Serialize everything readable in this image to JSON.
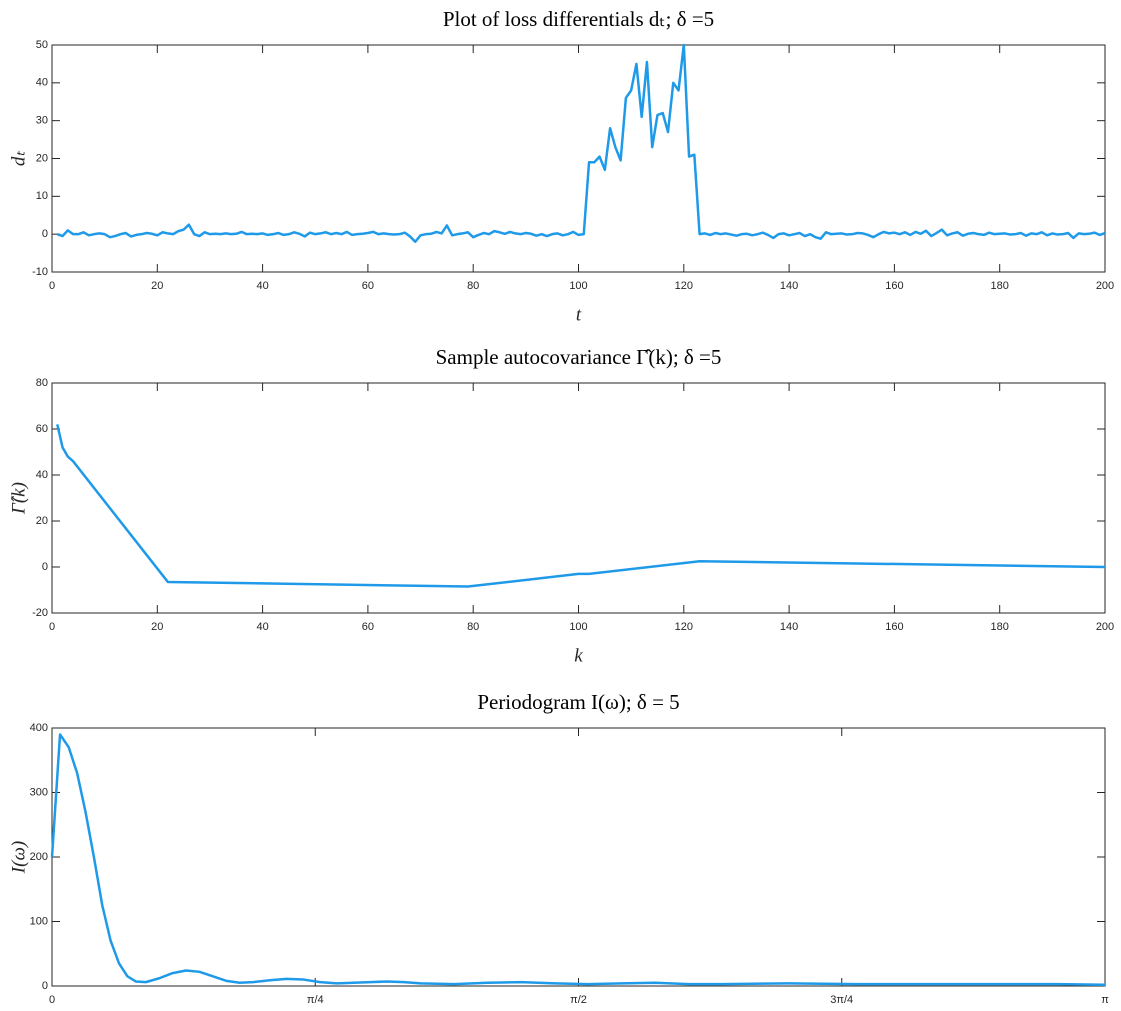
{
  "chart_data": [
    {
      "type": "line",
      "title": "Plot of loss differentials dₜ; δ =5",
      "xlabel": "t",
      "ylabel": "dₜ",
      "color": "#1f9ae8",
      "xlim": [
        0,
        200
      ],
      "xticks": [
        0,
        20,
        40,
        60,
        80,
        100,
        120,
        140,
        160,
        180,
        200
      ],
      "ylim": [
        -10,
        50
      ],
      "yticks": [
        -10,
        0,
        10,
        20,
        30,
        40,
        50
      ],
      "x": [
        1,
        2,
        3,
        4,
        5,
        6,
        7,
        8,
        9,
        10,
        11,
        12,
        13,
        14,
        15,
        16,
        17,
        18,
        19,
        20,
        21,
        22,
        23,
        24,
        25,
        26,
        27,
        28,
        29,
        30,
        31,
        32,
        33,
        34,
        35,
        36,
        37,
        38,
        39,
        40,
        41,
        42,
        43,
        44,
        45,
        46,
        47,
        48,
        49,
        50,
        51,
        52,
        53,
        54,
        55,
        56,
        57,
        58,
        59,
        60,
        61,
        62,
        63,
        64,
        65,
        66,
        67,
        68,
        69,
        70,
        71,
        72,
        73,
        74,
        75,
        76,
        77,
        78,
        79,
        80,
        81,
        82,
        83,
        84,
        85,
        86,
        87,
        88,
        89,
        90,
        91,
        92,
        93,
        94,
        95,
        96,
        97,
        98,
        99,
        100,
        101,
        102,
        103,
        104,
        105,
        106,
        107,
        108,
        109,
        110,
        111,
        112,
        113,
        114,
        115,
        116,
        117,
        118,
        119,
        120,
        121,
        122,
        123,
        124,
        125,
        126,
        127,
        128,
        129,
        130,
        131,
        132,
        133,
        134,
        135,
        136,
        137,
        138,
        139,
        140,
        141,
        142,
        143,
        144,
        145,
        146,
        147,
        148,
        149,
        150,
        151,
        152,
        153,
        154,
        155,
        156,
        157,
        158,
        159,
        160,
        161,
        162,
        163,
        164,
        165,
        166,
        167,
        168,
        169,
        170,
        171,
        172,
        173,
        174,
        175,
        176,
        177,
        178,
        179,
        180,
        181,
        182,
        183,
        184,
        185,
        186,
        187,
        188,
        189,
        190,
        191,
        192,
        193,
        194,
        195,
        196,
        197,
        198,
        199,
        200
      ],
      "values": [
        0,
        -0.5,
        1,
        0,
        0,
        0.5,
        -0.3,
        0,
        0.2,
        0,
        -0.8,
        -0.5,
        0,
        0.3,
        -0.6,
        -0.2,
        0,
        0.3,
        0.1,
        -0.3,
        0.5,
        0.2,
        0,
        0.8,
        1.2,
        2.5,
        0,
        -0.5,
        0.5,
        0,
        0.1,
        0,
        0.2,
        0,
        0.1,
        0.6,
        0,
        0.1,
        0,
        0.2,
        -0.2,
        0,
        0.3,
        -0.2,
        0,
        0.5,
        0.1,
        -0.6,
        0.4,
        0,
        0.2,
        0.5,
        0,
        0.3,
        0,
        0.6,
        -0.2,
        0,
        0.1,
        0.3,
        0.6,
        0,
        0.2,
        0,
        -0.1,
        0,
        0.4,
        -0.6,
        -2,
        -0.3,
        0,
        0.1,
        0.6,
        0.2,
        2.3,
        -0.3,
        0,
        0.2,
        0.5,
        -0.8,
        -0.2,
        0.3,
        0,
        0.8,
        0.5,
        0.1,
        0.6,
        0.2,
        0,
        0.3,
        0.1,
        -0.4,
        0,
        -0.5,
        0,
        0.2,
        -0.3,
        0,
        0.6,
        -0.2,
        0,
        19,
        19,
        20.5,
        17,
        28,
        23,
        19.5,
        36,
        38,
        45,
        31,
        45.5,
        23,
        31.5,
        32,
        27,
        40,
        38,
        50,
        20.5,
        21,
        0,
        0.2,
        -0.2,
        0.3,
        0,
        0.2,
        -0.1,
        -0.4,
        0,
        0.1,
        -0.3,
        0,
        0.4,
        -0.2,
        -1,
        0,
        0.2,
        -0.3,
        0,
        0.3,
        -0.5,
        0,
        -0.8,
        -1.2,
        0.5,
        0,
        0.1,
        0.2,
        -0.1,
        0,
        0.3,
        0.2,
        -0.2,
        -0.8,
        0,
        0.6,
        0.2,
        0.4,
        0,
        0.5,
        -0.2,
        0.6,
        0.1,
        0.9,
        -0.5,
        0.3,
        1.2,
        -0.3,
        0.2,
        0.5,
        -0.4,
        0.1,
        0.3,
        0,
        -0.2,
        0.4,
        0,
        0.1,
        0.2,
        -0.1,
        0,
        0.3,
        -0.4,
        0.2,
        0,
        0.5,
        -0.3,
        0.2,
        -0.1,
        0,
        0.3,
        -1,
        0.2,
        0,
        0.1,
        0.4,
        -0.2,
        0.3
      ]
    },
    {
      "type": "line",
      "title": "Sample autocovariance Γ̂(k); δ =5",
      "xlabel": "k",
      "ylabel": "Γ̂(k)",
      "color": "#1f9ae8",
      "xlim": [
        0,
        200
      ],
      "xticks": [
        0,
        20,
        40,
        60,
        80,
        100,
        120,
        140,
        160,
        180,
        200
      ],
      "ylim": [
        -20,
        80
      ],
      "yticks": [
        -20,
        0,
        20,
        40,
        60,
        80
      ],
      "x": [
        1,
        2,
        3,
        4,
        22,
        79,
        100,
        102,
        123,
        200
      ],
      "values": [
        62,
        52,
        48,
        46,
        -6.5,
        -8.5,
        -3,
        -3,
        2.5,
        0
      ]
    },
    {
      "type": "line",
      "title": "Periodogram I(ω); δ = 5",
      "xlabel": "ω",
      "ylabel": "I(ω)",
      "color": "#1f9ae8",
      "xlim": [
        0,
        3.14159
      ],
      "xticks": [
        0,
        {
          "value": 0.7854,
          "label": "π/4"
        },
        {
          "value": 1.5708,
          "label": "π/2"
        },
        {
          "value": 2.3562,
          "label": "3π/4"
        },
        {
          "value": 3.14159,
          "label": "π"
        }
      ],
      "ylim": [
        0,
        400
      ],
      "yticks": [
        0,
        100,
        200,
        300,
        400
      ],
      "x": [
        0,
        0.024,
        0.05,
        0.075,
        0.1,
        0.125,
        0.15,
        0.175,
        0.2,
        0.225,
        0.25,
        0.28,
        0.32,
        0.36,
        0.4,
        0.44,
        0.48,
        0.52,
        0.56,
        0.6,
        0.65,
        0.7,
        0.75,
        0.8,
        0.85,
        0.9,
        0.95,
        1.0,
        1.05,
        1.1,
        1.2,
        1.3,
        1.4,
        1.5,
        1.6,
        1.7,
        1.8,
        1.9,
        2.0,
        2.2,
        2.4,
        2.6,
        2.8,
        3.0,
        3.14159
      ],
      "values": [
        200,
        390,
        370,
        330,
        270,
        200,
        125,
        70,
        35,
        15,
        7,
        6,
        12,
        20,
        24,
        22,
        15,
        8,
        5,
        6,
        9,
        11,
        10,
        6,
        4,
        5,
        6,
        7,
        6,
        4,
        3,
        5,
        6,
        4,
        3,
        4,
        5,
        3,
        3,
        4,
        3,
        3,
        3,
        3,
        2
      ]
    }
  ]
}
